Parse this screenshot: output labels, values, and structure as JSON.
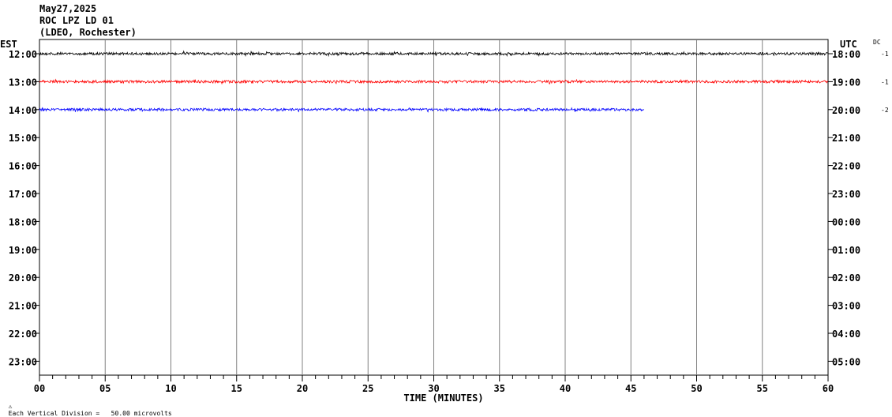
{
  "header": {
    "date": "May27,2025",
    "station": "ROC LPZ LD 01",
    "network": "(LDEO, Rochester)"
  },
  "left_zone_label": "EST",
  "right_zone_label": "UTC",
  "dc_label": "DC",
  "footer": {
    "scale_text": "Each Vertical Division =   50.00 microvolts"
  },
  "chart_data": {
    "type": "line",
    "title": "ROC LPZ LD 01",
    "xlabel": "TIME (MINUTES)",
    "xlim": [
      0,
      60
    ],
    "x_ticks": [
      "00",
      "05",
      "10",
      "15",
      "20",
      "25",
      "30",
      "35",
      "40",
      "45",
      "50",
      "55",
      "60"
    ],
    "left_hour_labels": [
      "12:00",
      "13:00",
      "14:00",
      "15:00",
      "16:00",
      "17:00",
      "18:00",
      "19:00",
      "20:00",
      "21:00",
      "22:00",
      "23:00"
    ],
    "right_hour_labels": [
      "18:00",
      "19:00",
      "20:00",
      "21:00",
      "22:00",
      "23:00",
      "00:00",
      "01:00",
      "02:00",
      "03:00",
      "04:00",
      "05:00"
    ],
    "grid": true,
    "series": [
      {
        "row": 0,
        "end_minute": 60,
        "color": "#000000",
        "dc_offset": "-1"
      },
      {
        "row": 1,
        "end_minute": 60,
        "color": "#ff0000",
        "dc_offset": "-1"
      },
      {
        "row": 2,
        "end_minute": 46,
        "color": "#0000ff",
        "dc_offset": "-2"
      }
    ]
  }
}
